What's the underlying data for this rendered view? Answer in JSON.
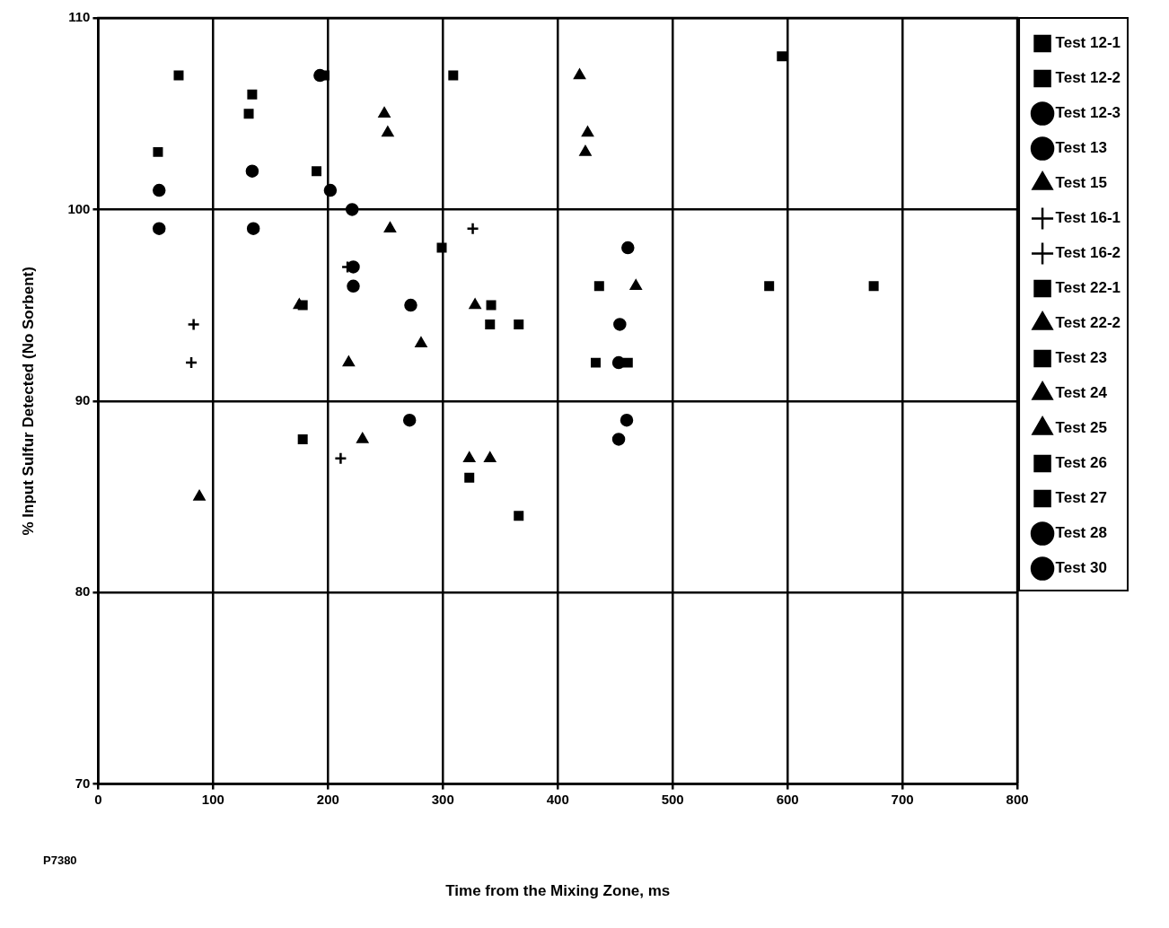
{
  "chart_data": {
    "type": "scatter",
    "xlabel": "Time from the Mixing Zone, ms",
    "ylabel": "% Input Sulfur Detected (No Sorbent)",
    "xlim": [
      0,
      800
    ],
    "xticks": [
      0,
      100,
      200,
      300,
      400,
      500,
      600,
      700,
      800
    ],
    "ylim": [
      70,
      110
    ],
    "yticks": [
      70,
      80,
      90,
      100,
      110
    ],
    "grid": true,
    "legend": "right",
    "annotations": [
      "P7380"
    ],
    "series": [
      {
        "name": "Test 12-1",
        "color": "#000000",
        "marker": "square",
        "x": [
          70,
          134
        ],
        "values": [
          107,
          106
        ]
      },
      {
        "name": "Test 12-2",
        "color": "#000000",
        "marker": "square",
        "x": [
          52,
          131,
          190,
          197
        ],
        "values": [
          103,
          105,
          102,
          107
        ]
      },
      {
        "name": "Test 12-3",
        "color": "#000000",
        "marker": "circle",
        "x": [
          53,
          135,
          202
        ],
        "values": [
          99,
          99,
          101
        ]
      },
      {
        "name": "Test 13",
        "color": "#000000",
        "marker": "circle",
        "x": [
          53,
          134,
          193
        ],
        "values": [
          101,
          102,
          107
        ]
      },
      {
        "name": "Test 15",
        "color": "#000000",
        "marker": "triangle",
        "x": [
          88,
          230,
          341
        ],
        "values": [
          85,
          88,
          87
        ]
      },
      {
        "name": "Test 16-1",
        "color": "#000000",
        "marker": "cross",
        "x": [
          83,
          326,
          217
        ],
        "values": [
          94,
          99,
          97
        ]
      },
      {
        "name": "Test 16-2",
        "color": "#000000",
        "marker": "cross",
        "x": [
          81,
          211
        ],
        "values": [
          92,
          87
        ]
      },
      {
        "name": "Test 22-1",
        "color": "#000000",
        "marker": "square",
        "x": [
          323
        ],
        "values": [
          86
        ]
      },
      {
        "name": "Test 22-2",
        "color": "#000000",
        "marker": "triangle",
        "x": [
          218,
          323
        ],
        "values": [
          92,
          87
        ]
      },
      {
        "name": "Test 23",
        "color": "#000000",
        "marker": "square",
        "x": [
          178,
          433
        ],
        "values": [
          88,
          92
        ]
      },
      {
        "name": "Test 24",
        "color": "#000000",
        "marker": "triangle",
        "x": [
          249,
          254,
          419,
          424,
          468
        ],
        "values": [
          105,
          99,
          107,
          103,
          96
        ]
      },
      {
        "name": "Test 25",
        "color": "#000000",
        "marker": "triangle",
        "x": [
          252,
          281,
          426,
          328,
          175
        ],
        "values": [
          104,
          93,
          104,
          95,
          95
        ]
      },
      {
        "name": "Test 26",
        "color": "#000000",
        "marker": "square",
        "x": [
          309,
          299,
          341,
          595,
          584,
          675,
          461
        ],
        "values": [
          107,
          98,
          94,
          108,
          96,
          96,
          92
        ]
      },
      {
        "name": "Test 27",
        "color": "#000000",
        "marker": "square",
        "x": [
          178,
          342,
          366,
          366,
          436
        ],
        "values": [
          95,
          95,
          94,
          84,
          96
        ]
      },
      {
        "name": "Test 28",
        "color": "#000000",
        "marker": "circle",
        "x": [
          221,
          222,
          222,
          461,
          460
        ],
        "values": [
          100,
          96,
          97,
          98,
          89
        ]
      },
      {
        "name": "Test 30",
        "color": "#000000",
        "marker": "circle",
        "x": [
          272,
          271,
          454,
          453,
          453
        ],
        "values": [
          95,
          89,
          94,
          88,
          92
        ]
      }
    ]
  }
}
